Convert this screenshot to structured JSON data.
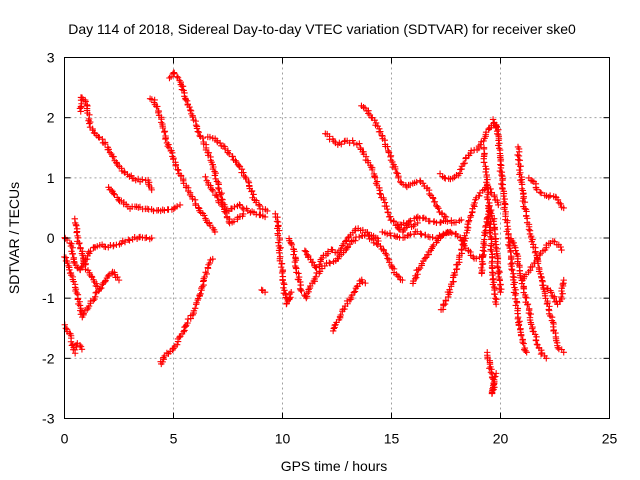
{
  "chart_data": {
    "type": "scatter",
    "title": "Day 114 of 2018, Sidereal Day-to-day VTEC variation (SDTVAR) for receiver ske0",
    "xlabel": "GPS time / hours",
    "ylabel": "SDTVAR / TECUs",
    "xlim": [
      0,
      25
    ],
    "ylim": [
      -3,
      3
    ],
    "x_ticks": [
      "0",
      "5",
      "10",
      "15",
      "20",
      "25"
    ],
    "y_ticks": [
      "-3",
      "-2",
      "-1",
      "0",
      "1",
      "2",
      "3"
    ],
    "grid": true,
    "marker": "+",
    "colors": {
      "series": "#ff0000",
      "grid": "#a0a0a0",
      "axes": "#000000"
    },
    "tracks": [
      [
        [
          0,
          -1.45
        ],
        [
          0.25,
          -1.6
        ],
        [
          0.45,
          -1.9
        ],
        [
          0.6,
          -1.75
        ],
        [
          0.8,
          -1.85
        ]
      ],
      [
        [
          0,
          -0.3
        ],
        [
          0.2,
          -0.5
        ],
        [
          0.4,
          -0.7
        ],
        [
          0.6,
          -0.95
        ],
        [
          0.8,
          -1.3
        ],
        [
          1.1,
          -1.15
        ],
        [
          1.5,
          -0.9
        ],
        [
          1.9,
          -0.7
        ],
        [
          2.2,
          -0.55
        ],
        [
          2.5,
          -0.7
        ]
      ],
      [
        [
          0,
          0.0
        ],
        [
          0.3,
          -0.1
        ],
        [
          0.5,
          -0.45
        ],
        [
          0.7,
          -0.55
        ],
        [
          0.9,
          -0.4
        ],
        [
          1.2,
          -0.2
        ],
        [
          1.6,
          -0.1
        ],
        [
          2.0,
          -0.15
        ],
        [
          2.4,
          -0.1
        ],
        [
          2.8,
          -0.05
        ],
        [
          3.2,
          0.0
        ],
        [
          3.6,
          0.0
        ],
        [
          4.0,
          0.0
        ]
      ],
      [
        [
          0.5,
          0.3
        ],
        [
          0.6,
          0.0
        ],
        [
          0.8,
          -0.25
        ],
        [
          1.0,
          -0.5
        ],
        [
          1.3,
          -0.7
        ],
        [
          1.6,
          -0.85
        ]
      ],
      [
        [
          0.7,
          2.1
        ],
        [
          0.8,
          2.35
        ],
        [
          1.0,
          2.25
        ],
        [
          1.2,
          1.85
        ],
        [
          1.5,
          1.7
        ],
        [
          1.9,
          1.55
        ],
        [
          2.3,
          1.3
        ],
        [
          2.7,
          1.1
        ],
        [
          3.1,
          1.0
        ],
        [
          3.5,
          0.95
        ],
        [
          3.8,
          0.95
        ],
        [
          4.0,
          0.8
        ]
      ],
      [
        [
          2.0,
          0.85
        ],
        [
          2.3,
          0.7
        ],
        [
          2.6,
          0.6
        ],
        [
          3.0,
          0.5
        ],
        [
          3.4,
          0.5
        ],
        [
          3.8,
          0.5
        ],
        [
          4.2,
          0.45
        ],
        [
          4.6,
          0.45
        ],
        [
          5.0,
          0.5
        ],
        [
          5.3,
          0.55
        ]
      ],
      [
        [
          3.9,
          2.3
        ],
        [
          4.1,
          2.3
        ],
        [
          4.4,
          2.0
        ],
        [
          4.7,
          1.6
        ],
        [
          5.0,
          1.3
        ],
        [
          5.3,
          1.05
        ],
        [
          5.6,
          0.85
        ],
        [
          5.9,
          0.65
        ],
        [
          6.2,
          0.45
        ],
        [
          6.6,
          0.25
        ],
        [
          6.9,
          0.1
        ]
      ],
      [
        [
          4.8,
          2.65
        ],
        [
          5.0,
          2.75
        ],
        [
          5.3,
          2.6
        ],
        [
          5.6,
          2.3
        ],
        [
          5.9,
          2.0
        ],
        [
          6.2,
          1.75
        ],
        [
          6.5,
          1.5
        ],
        [
          6.8,
          1.2
        ],
        [
          7.0,
          0.95
        ],
        [
          7.2,
          0.7
        ],
        [
          7.4,
          0.4
        ],
        [
          7.6,
          0.25
        ],
        [
          7.9,
          0.3
        ],
        [
          8.2,
          0.4
        ]
      ],
      [
        [
          4.4,
          -2.1
        ],
        [
          4.6,
          -1.95
        ],
        [
          5.0,
          -1.85
        ],
        [
          5.4,
          -1.6
        ],
        [
          5.8,
          -1.3
        ],
        [
          6.1,
          -1.05
        ],
        [
          6.4,
          -0.7
        ],
        [
          6.6,
          -0.45
        ],
        [
          6.8,
          -0.35
        ]
      ],
      [
        [
          6.6,
          1.7
        ],
        [
          6.9,
          1.65
        ],
        [
          7.2,
          1.55
        ],
        [
          7.6,
          1.4
        ],
        [
          8.0,
          1.2
        ],
        [
          8.4,
          0.95
        ],
        [
          8.7,
          0.65
        ],
        [
          9.0,
          0.5
        ],
        [
          9.3,
          0.45
        ]
      ],
      [
        [
          6.5,
          1.0
        ],
        [
          6.8,
          0.8
        ],
        [
          7.1,
          0.6
        ],
        [
          7.4,
          0.45
        ],
        [
          7.7,
          0.5
        ],
        [
          8.0,
          0.55
        ],
        [
          8.4,
          0.45
        ],
        [
          8.8,
          0.4
        ],
        [
          9.2,
          0.35
        ]
      ],
      [
        [
          9.0,
          -0.85
        ],
        [
          9.2,
          -0.9
        ]
      ],
      [
        [
          9.7,
          0.4
        ],
        [
          9.8,
          0.15
        ],
        [
          9.9,
          -0.3
        ],
        [
          10.0,
          -0.6
        ],
        [
          10.1,
          -0.9
        ],
        [
          10.2,
          -1.1
        ],
        [
          10.4,
          -0.9
        ]
      ],
      [
        [
          10.3,
          0.0
        ],
        [
          10.5,
          -0.2
        ],
        [
          10.7,
          -0.6
        ],
        [
          10.9,
          -0.9
        ],
        [
          11.1,
          -1.0
        ],
        [
          11.3,
          -0.8
        ],
        [
          11.6,
          -0.6
        ],
        [
          11.9,
          -0.45
        ],
        [
          12.2,
          -0.4
        ],
        [
          12.5,
          -0.35
        ],
        [
          12.8,
          -0.25
        ],
        [
          13.1,
          -0.1
        ],
        [
          13.4,
          0.0
        ],
        [
          13.7,
          0.05
        ],
        [
          14.0,
          0.0
        ],
        [
          14.3,
          -0.1
        ],
        [
          14.6,
          -0.2
        ],
        [
          14.9,
          -0.4
        ],
        [
          15.2,
          -0.6
        ],
        [
          15.5,
          -0.7
        ]
      ],
      [
        [
          11.0,
          -0.2
        ],
        [
          11.3,
          -0.4
        ],
        [
          11.6,
          -0.5
        ],
        [
          11.9,
          -0.3
        ],
        [
          12.2,
          -0.2
        ],
        [
          12.5,
          -0.25
        ],
        [
          12.8,
          -0.1
        ],
        [
          13.0,
          0.0
        ],
        [
          13.2,
          0.1
        ],
        [
          13.5,
          0.15
        ],
        [
          13.8,
          0.1
        ],
        [
          14.1,
          0.05
        ],
        [
          14.4,
          -0.05
        ]
      ],
      [
        [
          12.3,
          -1.55
        ],
        [
          12.5,
          -1.4
        ],
        [
          12.8,
          -1.2
        ],
        [
          13.1,
          -1.0
        ],
        [
          13.4,
          -0.85
        ],
        [
          13.6,
          -0.7
        ],
        [
          13.8,
          -0.75
        ]
      ],
      [
        [
          12.0,
          1.75
        ],
        [
          12.2,
          1.65
        ],
        [
          12.5,
          1.55
        ],
        [
          12.9,
          1.6
        ],
        [
          13.2,
          1.6
        ],
        [
          13.5,
          1.55
        ],
        [
          13.8,
          1.35
        ],
        [
          14.1,
          1.15
        ],
        [
          14.4,
          0.85
        ],
        [
          14.7,
          0.55
        ],
        [
          15.0,
          0.3
        ],
        [
          15.3,
          0.2
        ],
        [
          15.6,
          0.25
        ],
        [
          15.9,
          0.2
        ],
        [
          16.2,
          0.25
        ]
      ],
      [
        [
          13.6,
          2.2
        ],
        [
          13.9,
          2.1
        ],
        [
          14.2,
          1.95
        ],
        [
          14.5,
          1.75
        ],
        [
          14.8,
          1.5
        ],
        [
          15.1,
          1.2
        ],
        [
          15.4,
          0.95
        ],
        [
          15.7,
          0.85
        ],
        [
          16.0,
          0.9
        ],
        [
          16.3,
          0.95
        ],
        [
          16.6,
          0.85
        ],
        [
          16.9,
          0.65
        ],
        [
          17.2,
          0.45
        ],
        [
          17.5,
          0.35
        ]
      ],
      [
        [
          14.6,
          0.1
        ],
        [
          15.0,
          0.05
        ],
        [
          15.4,
          0.0
        ],
        [
          15.8,
          0.05
        ],
        [
          16.2,
          0.1
        ],
        [
          16.6,
          0.05
        ],
        [
          17.0,
          0.0
        ],
        [
          17.4,
          0.05
        ],
        [
          17.7,
          0.1
        ]
      ],
      [
        [
          15.2,
          0.2
        ],
        [
          15.5,
          0.1
        ],
        [
          15.9,
          0.3
        ],
        [
          16.3,
          0.35
        ],
        [
          16.7,
          0.3
        ],
        [
          17.1,
          0.25
        ],
        [
          17.5,
          0.3
        ],
        [
          17.9,
          0.25
        ],
        [
          18.2,
          0.3
        ]
      ],
      [
        [
          16.0,
          -0.75
        ],
        [
          16.2,
          -0.55
        ],
        [
          16.5,
          -0.35
        ],
        [
          16.8,
          -0.2
        ],
        [
          17.1,
          -0.05
        ],
        [
          17.4,
          0.05
        ],
        [
          17.7,
          0.1
        ],
        [
          18.0,
          0.05
        ],
        [
          18.3,
          -0.1
        ],
        [
          18.6,
          -0.25
        ],
        [
          18.9,
          -0.35
        ],
        [
          19.2,
          -0.3
        ]
      ],
      [
        [
          17.2,
          1.05
        ],
        [
          17.5,
          1.0
        ],
        [
          17.8,
          1.0
        ],
        [
          18.1,
          1.05
        ],
        [
          18.4,
          1.3
        ],
        [
          18.7,
          1.45
        ],
        [
          19.0,
          1.5
        ],
        [
          19.3,
          1.7
        ],
        [
          19.5,
          1.85
        ],
        [
          19.7,
          1.95
        ],
        [
          19.9,
          1.8
        ]
      ],
      [
        [
          17.3,
          -1.2
        ],
        [
          17.5,
          -1.05
        ],
        [
          17.7,
          -0.85
        ],
        [
          17.9,
          -0.6
        ],
        [
          18.1,
          -0.35
        ],
        [
          18.3,
          -0.1
        ],
        [
          18.5,
          0.2
        ],
        [
          18.7,
          0.45
        ],
        [
          18.9,
          0.65
        ],
        [
          19.1,
          0.75
        ],
        [
          19.3,
          0.85
        ],
        [
          19.5,
          0.8
        ],
        [
          19.7,
          0.7
        ],
        [
          19.9,
          0.55
        ]
      ],
      [
        [
          19.2,
          1.5
        ],
        [
          19.3,
          1.2
        ],
        [
          19.4,
          0.8
        ],
        [
          19.5,
          0.3
        ],
        [
          19.6,
          -0.3
        ],
        [
          19.7,
          -0.8
        ],
        [
          19.8,
          -1.1
        ]
      ],
      [
        [
          19.8,
          1.9
        ],
        [
          19.9,
          1.6
        ],
        [
          20.0,
          1.2
        ],
        [
          20.1,
          0.8
        ],
        [
          20.2,
          0.5
        ],
        [
          20.3,
          0.2
        ],
        [
          20.4,
          -0.1
        ],
        [
          20.5,
          -0.4
        ],
        [
          20.6,
          -0.7
        ],
        [
          20.7,
          -1.0
        ],
        [
          20.8,
          -1.3
        ],
        [
          20.9,
          -1.5
        ],
        [
          21.0,
          -1.7
        ],
        [
          21.1,
          -1.85
        ],
        [
          21.2,
          -1.9
        ]
      ],
      [
        [
          19.4,
          -1.9
        ],
        [
          19.5,
          -2.1
        ],
        [
          19.6,
          -2.3
        ],
        [
          19.7,
          -2.5
        ],
        [
          19.6,
          -2.6
        ],
        [
          19.8,
          -2.25
        ]
      ],
      [
        [
          20.8,
          1.5
        ],
        [
          20.9,
          1.1
        ],
        [
          21.0,
          0.8
        ],
        [
          21.1,
          0.5
        ],
        [
          21.3,
          0.2
        ],
        [
          21.5,
          -0.1
        ],
        [
          21.7,
          -0.4
        ],
        [
          21.9,
          -0.7
        ],
        [
          22.1,
          -1.0
        ],
        [
          22.3,
          -1.3
        ],
        [
          22.5,
          -1.6
        ],
        [
          22.7,
          -1.85
        ],
        [
          22.9,
          -1.9
        ]
      ],
      [
        [
          21.3,
          1.0
        ],
        [
          21.5,
          0.95
        ],
        [
          21.7,
          0.8
        ],
        [
          21.9,
          0.75
        ],
        [
          22.1,
          0.7
        ],
        [
          22.3,
          0.7
        ],
        [
          22.5,
          0.7
        ],
        [
          22.7,
          0.6
        ],
        [
          22.9,
          0.5
        ]
      ],
      [
        [
          21.0,
          -0.7
        ],
        [
          21.2,
          -0.6
        ],
        [
          21.4,
          -0.5
        ],
        [
          21.6,
          -0.4
        ],
        [
          21.8,
          -0.3
        ],
        [
          22.0,
          -0.2
        ],
        [
          22.2,
          -0.1
        ],
        [
          22.4,
          -0.05
        ],
        [
          22.6,
          -0.1
        ],
        [
          22.8,
          -0.2
        ]
      ],
      [
        [
          20.5,
          0.0
        ],
        [
          20.7,
          -0.2
        ],
        [
          20.9,
          -0.6
        ],
        [
          21.1,
          -0.9
        ],
        [
          21.3,
          -1.2
        ],
        [
          21.5,
          -1.5
        ],
        [
          21.7,
          -1.75
        ],
        [
          21.9,
          -1.95
        ],
        [
          22.1,
          -2.0
        ]
      ],
      [
        [
          22.0,
          -0.8
        ],
        [
          22.2,
          -0.85
        ],
        [
          22.4,
          -0.95
        ],
        [
          22.6,
          -1.1
        ],
        [
          22.8,
          -1.0
        ],
        [
          22.9,
          -0.7
        ]
      ],
      [
        [
          19.1,
          -0.6
        ],
        [
          19.2,
          -0.3
        ],
        [
          19.3,
          0.1
        ],
        [
          19.5,
          0.5
        ],
        [
          19.7,
          0.3
        ],
        [
          19.8,
          -0.1
        ],
        [
          19.9,
          -0.5
        ],
        [
          20.0,
          -0.9
        ]
      ]
    ]
  }
}
